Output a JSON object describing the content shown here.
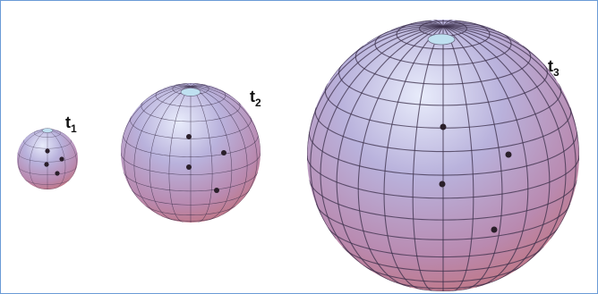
{
  "spheres": [
    {
      "id": "t1",
      "letter": "t",
      "subscript": "1"
    },
    {
      "id": "t2",
      "letter": "t",
      "subscript": "2"
    },
    {
      "id": "t3",
      "letter": "t",
      "subscript": "3"
    }
  ],
  "colors": {
    "frame_border": "#6a9bd6",
    "sphere_highlight": "#cfd6f2",
    "sphere_mid": "#a38ab8",
    "sphere_shadow": "#b86a6a",
    "grid_line": "#3b2f4a",
    "point_marker": "#2a1f2a",
    "cap": "#bfe0f0"
  }
}
